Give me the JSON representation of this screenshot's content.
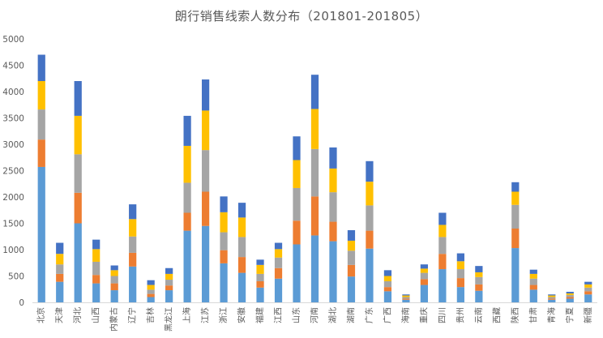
{
  "chart_data": {
    "type": "bar",
    "stacked": true,
    "title": "朗行销售线索人数分布（201801-201805）",
    "xlabel": "",
    "ylabel": "",
    "ylim": [
      0,
      5000
    ],
    "yticks": [
      0,
      500,
      1000,
      1500,
      2000,
      2500,
      3000,
      3500,
      4000,
      4500,
      5000
    ],
    "grid": false,
    "legend": "none",
    "categories": [
      "北京",
      "天津",
      "河北",
      "山西",
      "内蒙古",
      "辽宁",
      "吉林",
      "黑龙江",
      "上海",
      "江苏",
      "浙江",
      "安徽",
      "福建",
      "江西",
      "山东",
      "河南",
      "湖北",
      "湖南",
      "广东",
      "广西",
      "海南",
      "重庆",
      "四川",
      "贵州",
      "云南",
      "西藏",
      "陕西",
      "甘肃",
      "青海",
      "宁夏",
      "新疆"
    ],
    "series": [
      {
        "color": "#5B9BD5",
        "values": [
          2570,
          390,
          1500,
          360,
          230,
          680,
          100,
          230,
          1360,
          1450,
          740,
          560,
          280,
          450,
          1100,
          1270,
          1160,
          490,
          1020,
          210,
          50,
          330,
          630,
          290,
          220,
          0,
          1030,
          240,
          50,
          70,
          150
        ]
      },
      {
        "color": "#ED7D31",
        "values": [
          520,
          150,
          580,
          160,
          130,
          260,
          60,
          90,
          340,
          650,
          250,
          300,
          120,
          200,
          450,
          740,
          370,
          220,
          340,
          80,
          20,
          110,
          290,
          170,
          120,
          0,
          370,
          90,
          20,
          30,
          60
        ]
      },
      {
        "color": "#A5A5A5",
        "values": [
          570,
          180,
          730,
          250,
          140,
          310,
          80,
          110,
          570,
          790,
          340,
          380,
          140,
          200,
          620,
          900,
          560,
          270,
          480,
          110,
          30,
          120,
          320,
          170,
          140,
          0,
          450,
          120,
          30,
          40,
          70
        ]
      },
      {
        "color": "#FFC000",
        "values": [
          540,
          200,
          730,
          240,
          110,
          330,
          90,
          110,
          700,
          750,
          380,
          370,
          170,
          160,
          530,
          760,
          450,
          190,
          450,
          100,
          30,
          80,
          230,
          150,
          90,
          0,
          250,
          90,
          30,
          30,
          60
        ]
      },
      {
        "color": "#4472C4",
        "values": [
          500,
          210,
          660,
          180,
          90,
          280,
          90,
          110,
          570,
          590,
          300,
          280,
          100,
          120,
          450,
          650,
          400,
          200,
          390,
          110,
          20,
          80,
          230,
          150,
          120,
          0,
          180,
          80,
          20,
          30,
          50
        ]
      }
    ]
  }
}
